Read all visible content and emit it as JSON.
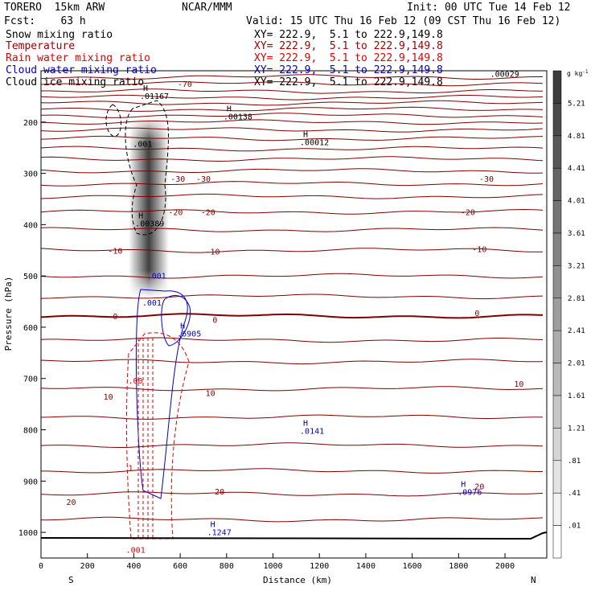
{
  "header": {
    "model": "TORERO  15km ARW",
    "org": "NCAR/MMM",
    "init": "Init: 00 UTC Tue 14 Feb 12",
    "fcst": "Fcst:    63 h",
    "valid": "Valid: 15 UTC Thu 16 Feb 12 (09 CST Thu 16 Feb 12)"
  },
  "fields": [
    {
      "label": "Snow mixing ratio",
      "color": "#000000",
      "xy": "XY= 222.9,  5.1 to 222.9,149.8"
    },
    {
      "label": "Temperature",
      "color": "#a00000",
      "xy": "XY= 222.9,  5.1 to 222.9,149.8"
    },
    {
      "label": "Rain water mixing ratio",
      "color": "#e00000",
      "xy": "XY= 222.9,  5.1 to 222.9,149.8"
    },
    {
      "label": "Cloud water mixing ratio",
      "color": "#0000c8",
      "xy": "XY= 222.9,  5.1 to 222.9,149.8"
    },
    {
      "label": "Cloud ice mixing ratio",
      "color": "#000000",
      "xy": "XY= 222.9,  5.1 to 222.9,149.8"
    }
  ],
  "chart_data": {
    "type": "cross-section",
    "title": "Snow mixing ratio / Temperature / Rain water / Cloud water / Cloud ice mixing ratio",
    "xlabel": "Distance (km)",
    "ylabel": "Pressure (hPa)",
    "xlim": [
      0,
      2180
    ],
    "ylim": [
      1050,
      100
    ],
    "x_ticks": [
      0,
      200,
      400,
      600,
      800,
      1000,
      1200,
      1400,
      1600,
      1800,
      2000
    ],
    "y_ticks": [
      200,
      300,
      400,
      500,
      600,
      700,
      800,
      900,
      1000
    ],
    "direction_labels": {
      "left": "S",
      "right": "N"
    },
    "shading": {
      "field": "Snow mixing ratio",
      "units": "g kg",
      "units_exp": "-1",
      "levels": [
        "5.21",
        "4.81",
        "4.41",
        "4.01",
        "3.61",
        "3.21",
        "2.81",
        "2.41",
        "2.01",
        "1.61",
        "1.21",
        ".81",
        ".41",
        ".01"
      ],
      "column_x_km": 450
    },
    "temperature_isotherms": [
      {
        "value": -70,
        "label": "-70",
        "label_x": 620,
        "label_p": 125
      },
      {
        "value": -30,
        "label": "-30",
        "label_x": 590,
        "label_p": 310
      },
      {
        "value": -30,
        "label": "-30",
        "label_x": 700,
        "label_p": 310
      },
      {
        "value": -30,
        "label": "-30",
        "label_x": 1920,
        "label_p": 310
      },
      {
        "value": -20,
        "label": "-20",
        "label_x": 580,
        "label_p": 375
      },
      {
        "value": -20,
        "label": "-20",
        "label_x": 720,
        "label_p": 375
      },
      {
        "value": -20,
        "label": "-20",
        "label_x": 1840,
        "label_p": 375
      },
      {
        "value": -10,
        "label": "-10",
        "label_x": 320,
        "label_p": 450
      },
      {
        "value": -10,
        "label": "-10",
        "label_x": 740,
        "label_p": 452
      },
      {
        "value": -10,
        "label": "-10",
        "label_x": 1890,
        "label_p": 447
      },
      {
        "value": 0,
        "label": "0",
        "label_x": 320,
        "label_p": 578
      },
      {
        "value": 0,
        "label": "0",
        "label_x": 750,
        "label_p": 585
      },
      {
        "value": 0,
        "label": "0",
        "label_x": 1880,
        "label_p": 572
      },
      {
        "value": 10,
        "label": "10",
        "label_x": 290,
        "label_p": 735
      },
      {
        "value": 10,
        "label": "10",
        "label_x": 730,
        "label_p": 728
      },
      {
        "value": 10,
        "label": "10",
        "label_x": 2060,
        "label_p": 710
      },
      {
        "value": 20,
        "label": "20",
        "label_x": 130,
        "label_p": 940
      },
      {
        "value": 20,
        "label": "20",
        "label_x": 770,
        "label_p": 920
      },
      {
        "value": 20,
        "label": "20",
        "label_x": 1890,
        "label_p": 910
      }
    ],
    "isotherm_pressures": [
      112,
      125,
      140,
      152,
      163,
      175,
      187,
      200,
      215,
      232,
      252,
      272,
      295,
      320,
      345,
      375,
      410,
      450,
      500,
      540,
      578,
      625,
      667,
      720,
      775,
      830,
      880,
      925,
      975
    ],
    "extrema": [
      {
        "field": "Cloud ice mixing ratio",
        "marker": "H",
        "value": ".01167",
        "x": 440,
        "p": 155
      },
      {
        "field": "Cloud ice mixing ratio",
        "marker": "H",
        "value": ".00138",
        "x": 800,
        "p": 195
      },
      {
        "field": "Cloud ice mixing ratio",
        "marker": "H",
        "value": ".00012",
        "x": 1130,
        "p": 245
      },
      {
        "field": "Cloud ice mixing ratio",
        "marker": "",
        "value": ".00029",
        "x": 1950,
        "p": 112
      },
      {
        "field": "Cloud ice mixing ratio",
        "marker": "H",
        "value": ".00389",
        "x": 420,
        "p": 403
      },
      {
        "field": "Cloud ice mixing ratio",
        "marker": "",
        "value": ".001",
        "x": 410,
        "p": 248
      },
      {
        "field": "Cloud water mixing ratio",
        "marker": "",
        "value": ".001",
        "x": 470,
        "p": 505
      },
      {
        "field": "Cloud water mixing ratio",
        "marker": "",
        "value": ".001",
        "x": 450,
        "p": 558
      },
      {
        "field": "Cloud water mixing ratio",
        "marker": "H",
        "value": ".6905",
        "x": 600,
        "p": 618
      },
      {
        "field": "Cloud water mixing ratio",
        "marker": "H",
        "value": ".0141",
        "x": 1130,
        "p": 808
      },
      {
        "field": "Cloud water mixing ratio",
        "marker": "H",
        "value": ".0976",
        "x": 1810,
        "p": 927
      },
      {
        "field": "Cloud water mixing ratio",
        "marker": "H",
        "value": ".1247",
        "x": 730,
        "p": 1005
      },
      {
        "field": "Rain water mixing ratio",
        "marker": "",
        "value": ".00",
        "x": 390,
        "p": 710
      },
      {
        "field": "Rain water mixing ratio",
        "marker": "",
        "value": "1",
        "x": 390,
        "p": 880
      },
      {
        "field": "Rain water mixing ratio",
        "marker": "",
        "value": ".001",
        "x": 380,
        "p": 1040
      }
    ]
  }
}
